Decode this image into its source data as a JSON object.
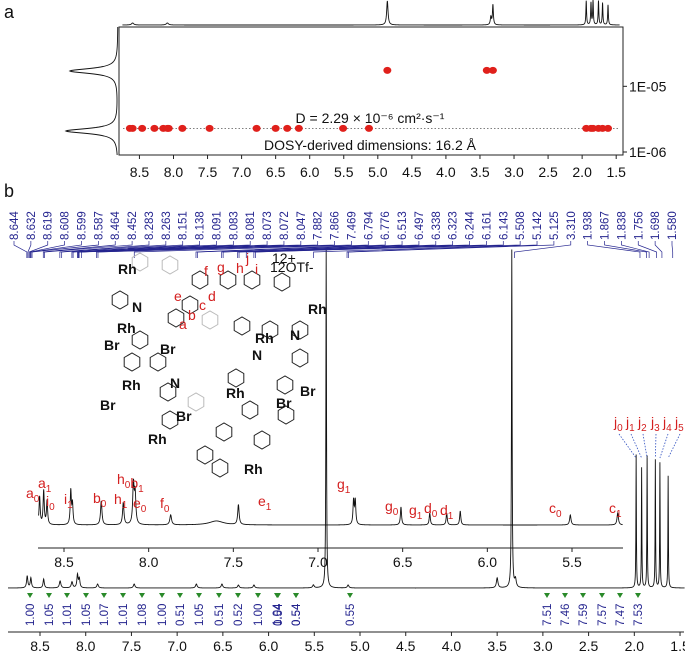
{
  "chart_data": [
    {
      "type": "scatter",
      "label": "a",
      "log_y": true,
      "xlim": [
        8.8,
        1.4
      ],
      "xticks": [
        8.5,
        {
          "value": 8,
          "label": "8.0"
        },
        7.5,
        {
          "value": 7,
          "label": "7.0"
        },
        6.5,
        {
          "value": 6,
          "label": "6.0"
        },
        5.5,
        {
          "value": 5,
          "label": "5.0"
        },
        4.5,
        {
          "value": 4,
          "label": "4.0"
        },
        3.5,
        {
          "value": 3,
          "label": "3.0"
        },
        2.5,
        {
          "value": 2,
          "label": "2.0"
        },
        1.5
      ],
      "ylim": [
        9e-07,
        8e-05
      ],
      "yticks": [
        {
          "value": 1e-05,
          "label": "1E-05"
        },
        {
          "value": 1e-06,
          "label": "1E-06"
        }
      ],
      "series": [
        {
          "color": "#e0201b",
          "x": [
            8.64,
            8.6,
            8.46,
            8.28,
            8.15,
            8.09,
            8.07,
            7.87,
            7.47,
            6.78,
            6.5,
            6.33,
            6.16,
            5.51,
            5.13,
            1.94,
            1.87,
            1.84,
            1.76,
            1.7,
            1.62
          ],
          "y": [
            2.29e-06,
            2.29e-06,
            2.29e-06,
            2.29e-06,
            2.29e-06,
            2.29e-06,
            2.29e-06,
            2.29e-06,
            2.29e-06,
            2.29e-06,
            2.29e-06,
            2.29e-06,
            2.29e-06,
            2.29e-06,
            2.29e-06,
            2.29e-06,
            2.29e-06,
            2.29e-06,
            2.29e-06,
            2.29e-06,
            2.29e-06
          ]
        },
        {
          "color": "#e0201b",
          "x": [
            4.86,
            3.4,
            3.31
          ],
          "y": [
            1.75e-05,
            1.75e-05,
            1.75e-05
          ]
        }
      ],
      "reference_line": 2.29e-06,
      "annotation": "D = 2.29 × 10⁻⁶ cm²·s⁻¹",
      "subtitle": "DOSY-derived dimensions: 16.2 Å"
    },
    {
      "type": "spectrum",
      "label": "b",
      "xlim": [
        8.85,
        1.45
      ],
      "xticks": [
        8.5,
        {
          "value": 8,
          "label": "8.0"
        },
        7.5,
        {
          "value": 7,
          "label": "7.0"
        },
        6.5,
        {
          "value": 6,
          "label": "6.0"
        },
        5.5,
        {
          "value": 5,
          "label": "5.0"
        },
        4.5,
        {
          "value": 4,
          "label": "4.0"
        },
        3.5,
        {
          "value": 3,
          "label": "3.0"
        },
        2.5,
        {
          "value": 2,
          "label": "2.0"
        },
        1.5
      ],
      "inset_xlim": [
        8.65,
        5.2
      ],
      "inset_xticks": [
        8.5,
        {
          "value": 8,
          "label": "8.0"
        },
        7.5,
        {
          "value": 7,
          "label": "7.0"
        },
        6.5,
        {
          "value": 6,
          "label": "6.0"
        },
        5.5
      ],
      "peak_list": [
        "8.644",
        "8.632",
        "8.619",
        "8.608",
        "8.599",
        "8.587",
        "8.464",
        "8.452",
        "8.283",
        "8.263",
        "8.151",
        "8.138",
        "8.091",
        "8.083",
        "8.081",
        "8.073",
        "8.072",
        "8.047",
        "7.882",
        "7.866",
        "7.469",
        "6.794",
        "6.776",
        "6.513",
        "6.497",
        "6.338",
        "6.323",
        "6.244",
        "6.161",
        "6.143",
        "5.508",
        "5.142",
        "5.125",
        "3.310",
        "1.938",
        "1.867",
        "1.838",
        "1.756",
        "1.698",
        "1.580"
      ],
      "integrals": [
        "1.00",
        "1.05",
        "1.01",
        "1.05",
        "1.07",
        "1.01",
        "1.08",
        "1.00",
        "0.51",
        "1.05",
        "0.51",
        "0.52",
        "1.00",
        "1.04",
        "0.54",
        "0.54",
        "0.54",
        "0.55",
        "7.51",
        "7.46",
        "7.59",
        "7.57",
        "7.47",
        "7.53"
      ],
      "assignments": [
        {
          "parts": [
            [
              "a",
              "0"
            ]
          ]
        },
        {
          "parts": [
            [
              "a",
              "1"
            ]
          ]
        },
        {
          "parts": [
            [
              "i",
              "0"
            ]
          ]
        },
        {
          "parts": [
            [
              "i",
              "1"
            ]
          ]
        },
        {
          "parts": [
            [
              "b",
              "0"
            ]
          ]
        },
        {
          "parts": [
            [
              "h",
              "1"
            ]
          ]
        },
        {
          "parts": [
            [
              "h",
              "0"
            ],
            [
              "b",
              "1"
            ]
          ]
        },
        {
          "parts": [
            [
              "e",
              "0"
            ]
          ]
        },
        {
          "parts": [
            [
              "f",
              "0"
            ]
          ]
        },
        {
          "parts": [
            [
              "e",
              "1"
            ]
          ]
        },
        {
          "parts": [
            [
              "g",
              "1"
            ]
          ]
        },
        {
          "parts": [
            [
              "g",
              "0"
            ]
          ]
        },
        {
          "parts": [
            [
              "g",
              "1"
            ]
          ]
        },
        {
          "parts": [
            [
              "d",
              "0"
            ]
          ]
        },
        {
          "parts": [
            [
              "d",
              "1"
            ]
          ]
        },
        {
          "parts": [
            [
              "c",
              "0"
            ]
          ]
        },
        {
          "parts": [
            [
              "c",
              "1"
            ]
          ]
        }
      ],
      "methyl_assignments": [
        [
          "j",
          "0"
        ],
        [
          "j",
          "1"
        ],
        [
          "j",
          "2"
        ],
        [
          "j",
          "3"
        ],
        [
          "j",
          "4"
        ],
        [
          "j",
          "5"
        ]
      ]
    }
  ],
  "molecule": {
    "sites": [
      "j",
      "f",
      "g",
      "h",
      "i",
      "e",
      "d",
      "c",
      "b",
      "a"
    ],
    "charge": "12+",
    "counterion": "12OTf-",
    "atoms": [
      "Rh",
      "Rh",
      "Rh",
      "Rh",
      "Rh",
      "Rh",
      "Rh",
      "Rh",
      "Br",
      "Br",
      "Br",
      "Br",
      "Br",
      "Br",
      "N",
      "N",
      "N",
      "N"
    ]
  }
}
